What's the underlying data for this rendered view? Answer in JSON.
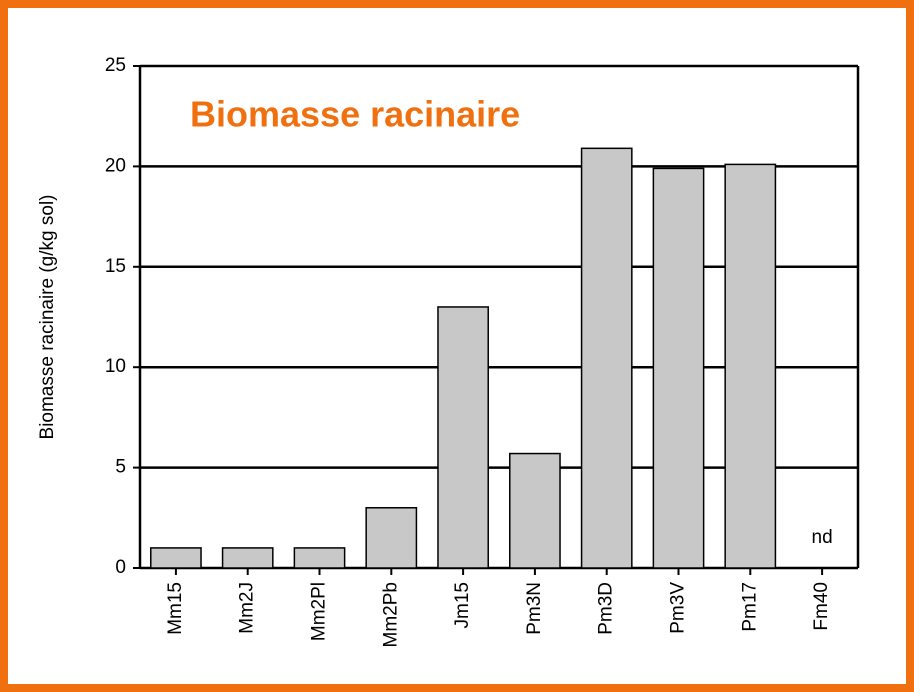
{
  "chart_data": {
    "type": "bar",
    "title": "Biomasse racinaire",
    "y_label": "Biomasse racinaire (g/kg sol)",
    "categories": [
      "Mm15",
      "Mm2J",
      "Mm2Pl",
      "Mm2Pb",
      "Jm15",
      "Pm3N",
      "Pm3D",
      "Pm3V",
      "Pm17",
      "Fm40"
    ],
    "values": [
      1,
      1,
      1,
      3,
      13,
      5.7,
      20.9,
      19.9,
      20.1,
      null
    ],
    "annotation": "nd",
    "color": "#c8c8c8",
    "ylim": [
      0,
      25
    ],
    "yticks": [
      0,
      5,
      10,
      15,
      20,
      25
    ],
    "grid": true
  }
}
